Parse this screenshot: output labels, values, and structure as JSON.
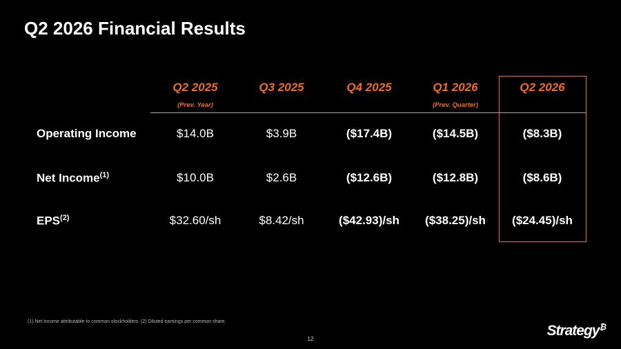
{
  "header": {
    "title": "Q2 2026 Financial Results"
  },
  "table": {
    "columns": [
      {
        "label": "Q2 2025",
        "note": "(Prev. Year)"
      },
      {
        "label": "Q3 2025"
      },
      {
        "label": "Q4 2025"
      },
      {
        "label": "Q1 2026",
        "note": "(Prev. Quarter)"
      },
      {
        "label": "Q2 2026"
      }
    ],
    "rows": [
      {
        "label": "Operating Income",
        "cells": [
          "$14.0B",
          "$3.9B",
          "($17.4B)",
          "($14.5B)",
          "($8.3B)"
        ]
      },
      {
        "label": "Net Income",
        "superscript": "(1)",
        "cells": [
          "$10.0B",
          "$2.6B",
          "($12.6B)",
          "($12.8B)",
          "($8.6B)"
        ]
      },
      {
        "label": "EPS",
        "superscript": "(2)",
        "cells": [
          "$32.60/sh",
          "$8.42/sh",
          "($42.93)/sh",
          "($38.25)/sh",
          "($24.45)/sh"
        ]
      }
    ]
  },
  "footnote": "(1) Net income attributable to common stockholders. (2) Diluted earnings per common share.",
  "page_number": "12",
  "logo": {
    "name": "Strategy",
    "mark": "₿"
  }
}
